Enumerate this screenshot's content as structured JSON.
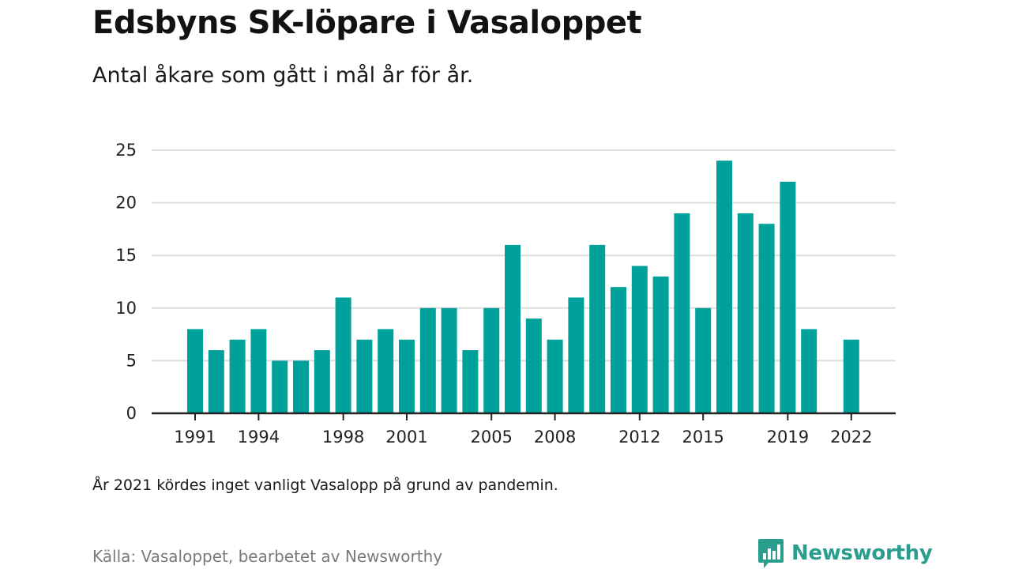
{
  "title": "Edsbyns SK-löpare i Vasaloppet",
  "subtitle": "Antal åkare som gått i mål år för år.",
  "note": "År 2021 kördes inget vanligt Vasalopp på grund av pandemin.",
  "source": "Källa: Vasaloppet, bearbetet av Newsworthy",
  "brand": {
    "name": "Newsworthy",
    "icon": "newsworthy-logo-icon"
  },
  "colors": {
    "bar": "#00a19a",
    "grid": "#dddddd",
    "axis": "#222222"
  },
  "chart_data": {
    "type": "bar",
    "categories": [
      1991,
      1992,
      1993,
      1994,
      1995,
      1996,
      1997,
      1998,
      1999,
      2000,
      2001,
      2002,
      2003,
      2004,
      2005,
      2006,
      2007,
      2008,
      2009,
      2010,
      2011,
      2012,
      2013,
      2014,
      2015,
      2016,
      2017,
      2018,
      2019,
      2020,
      2021,
      2022
    ],
    "values": [
      8,
      6,
      7,
      8,
      5,
      5,
      6,
      11,
      7,
      8,
      7,
      10,
      10,
      6,
      10,
      16,
      9,
      7,
      11,
      16,
      12,
      14,
      13,
      19,
      10,
      24,
      19,
      18,
      22,
      8,
      null,
      7
    ],
    "x_tick_labels": [
      "1991",
      "1994",
      "1998",
      "2001",
      "2005",
      "2008",
      "2012",
      "2015",
      "2019",
      "2022"
    ],
    "y_ticks": [
      0,
      5,
      10,
      15,
      20,
      25
    ],
    "ylim": [
      0,
      25
    ],
    "grid": true
  }
}
